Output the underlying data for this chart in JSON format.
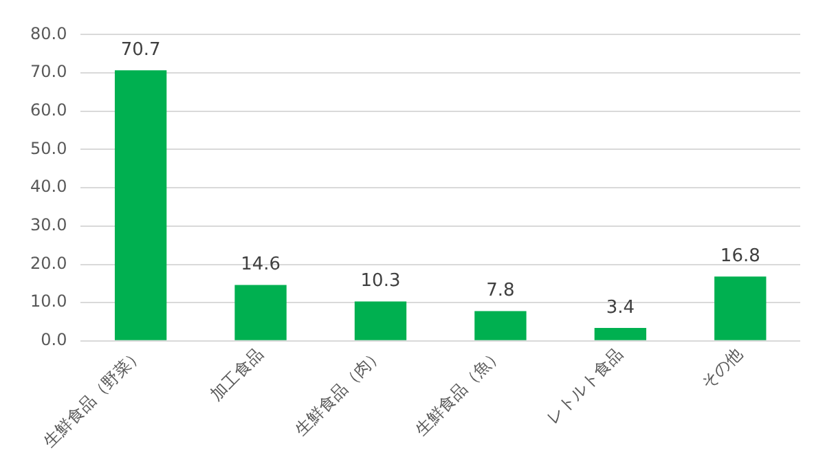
{
  "chart_data": {
    "type": "bar",
    "categories": [
      "生鮮食品（野菜）",
      "加工食品",
      "生鮮食品（肉）",
      "生鮮食品（魚）",
      "レトルト食品",
      "その他"
    ],
    "values": [
      70.7,
      14.6,
      10.3,
      7.8,
      3.4,
      16.8
    ],
    "color": "#00b050",
    "ylim": [
      0,
      80
    ],
    "yticks": [
      {
        "value": 0,
        "label": "0.0"
      },
      {
        "value": 10,
        "label": "10.0"
      },
      {
        "value": 20,
        "label": "20.0"
      },
      {
        "value": 30,
        "label": "30.0"
      },
      {
        "value": 40,
        "label": "40.0"
      },
      {
        "value": 50,
        "label": "50.0"
      },
      {
        "value": 60,
        "label": "60.0"
      },
      {
        "value": 70,
        "label": "70.0"
      },
      {
        "value": 80,
        "label": "80.0"
      }
    ],
    "grid": "y",
    "data_labels": true,
    "legend": false
  }
}
